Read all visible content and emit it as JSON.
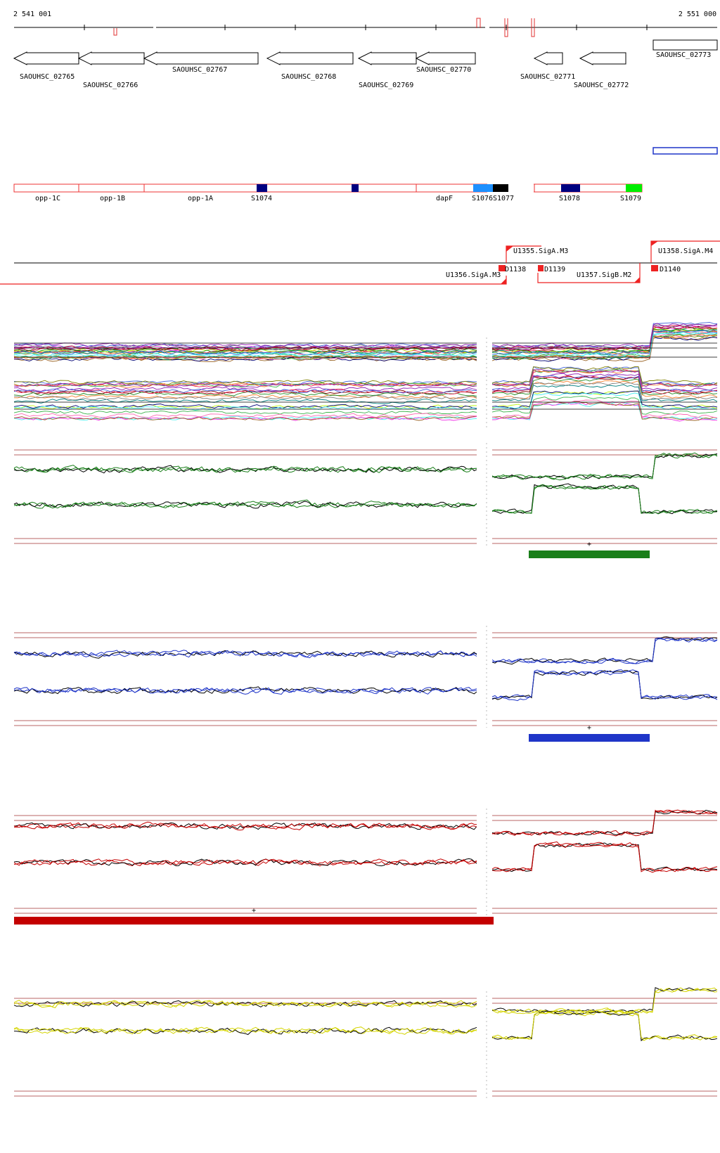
{
  "coords": {
    "start": "2 541 001",
    "end": "2 551 000"
  },
  "genes": [
    {
      "label": "SAOUHSC_02765"
    },
    {
      "label": "SAOUHSC_02766"
    },
    {
      "label": "SAOUHSC_02767"
    },
    {
      "label": "SAOUHSC_02768"
    },
    {
      "label": "SAOUHSC_02769"
    },
    {
      "label": "SAOUHSC_02770"
    },
    {
      "label": "SAOUHSC_02771"
    },
    {
      "label": "SAOUHSC_02772"
    },
    {
      "label": "SAOUHSC_02773"
    }
  ],
  "segments": [
    {
      "label": "opp-1C"
    },
    {
      "label": "opp-1B"
    },
    {
      "label": "opp-1A"
    },
    {
      "label": "S1074"
    },
    {
      "label": "dapF"
    },
    {
      "label": "S1076"
    },
    {
      "label": "S1077"
    },
    {
      "label": "S1078"
    },
    {
      "label": "S1079"
    }
  ],
  "segment_colors": {
    "outline": "#ee3333",
    "navy": "#000080",
    "sky": "#1e90ff",
    "black": "#000000",
    "green": "#00ee00"
  },
  "promoters": [
    {
      "label": "U1355.SigA.M3"
    },
    {
      "label": "U1356.SigA.M3"
    },
    {
      "label": "U1357.SigB.M2"
    },
    {
      "label": "U1358.SigA.M4"
    }
  ],
  "terminators": [
    {
      "label": "D1138"
    },
    {
      "label": "D1139"
    },
    {
      "label": "D1140"
    }
  ],
  "panels": [
    {
      "color": "#1a7f1a",
      "strand": "+"
    },
    {
      "color": "#1f35c8",
      "strand": "+"
    },
    {
      "color": "#c40000",
      "strand": "+"
    },
    {
      "color": "#d4d400"
    }
  ]
}
